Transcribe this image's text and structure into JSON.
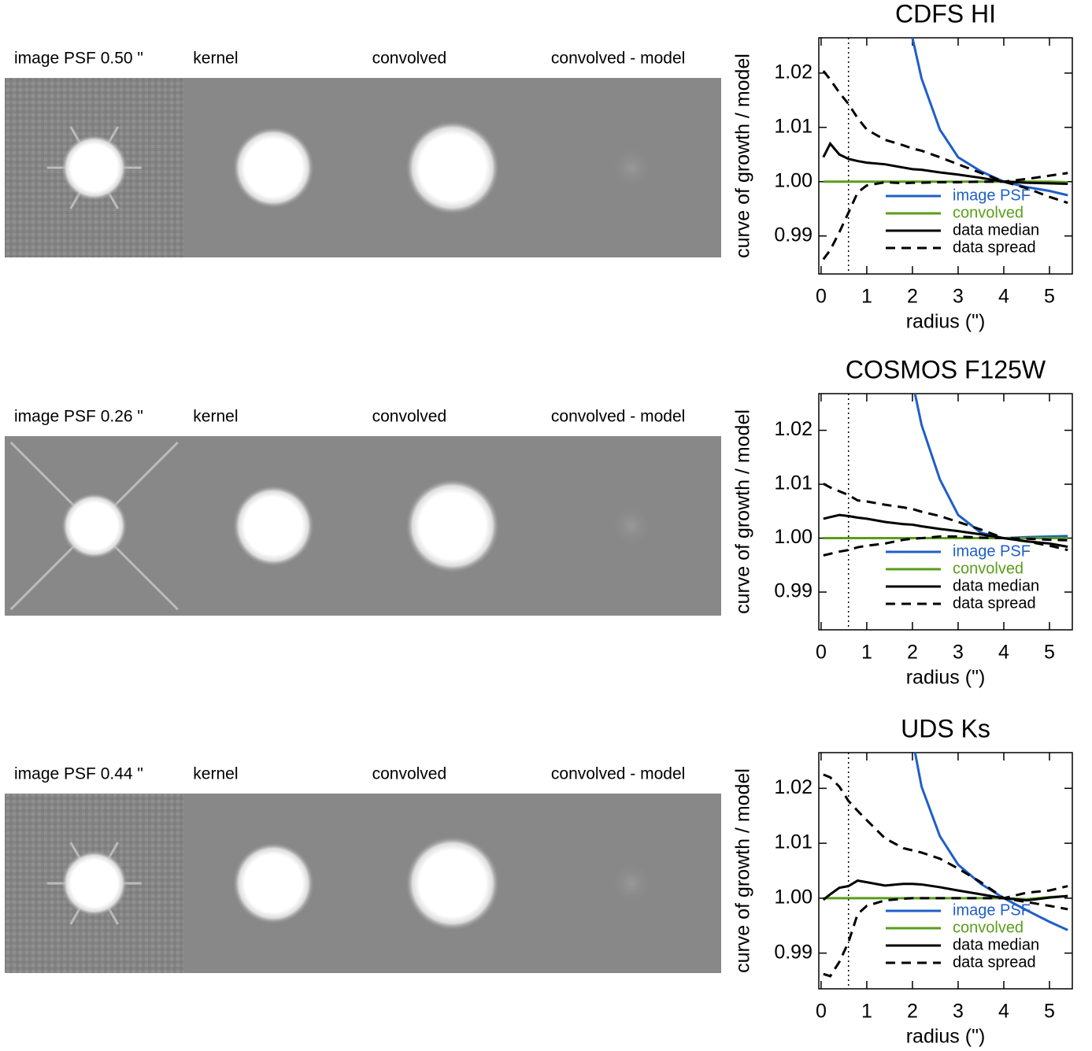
{
  "image_rows": [
    {
      "labels": [
        "image PSF 0.50 \"",
        "kernel",
        "convolved",
        "convolved - model"
      ]
    },
    {
      "labels": [
        "image PSF 0.26 \"",
        "kernel",
        "convolved",
        "convolved - model"
      ]
    },
    {
      "labels": [
        "image PSF 0.44 \"",
        "kernel",
        "convolved",
        "convolved - model"
      ]
    }
  ],
  "chart_data": [
    {
      "type": "line",
      "title": "CDFS HI",
      "x_label": "radius (\")",
      "y_label": "curve of growth / model",
      "xlim": [
        -0.05,
        5.5
      ],
      "ylim": [
        0.983,
        1.0265
      ],
      "xticks": [
        0,
        1,
        2,
        3,
        4,
        5
      ],
      "yticks": [
        0.99,
        {
          "value": 1.0,
          "label": "1.00"
        },
        1.01,
        1.02
      ],
      "vline_x": 0.6,
      "legend": "lower right",
      "x": [
        0.05,
        0.2,
        0.4,
        0.6,
        0.8,
        1.0,
        1.4,
        1.8,
        2.0,
        2.2,
        2.6,
        3.0,
        3.5,
        4.0,
        4.5,
        5.0,
        5.4
      ],
      "series": [
        {
          "name": "image PSF",
          "color": "#1f5fc8",
          "linestyle": "solid",
          "values": [
            null,
            null,
            null,
            null,
            null,
            null,
            null,
            null,
            1.0265,
            1.019,
            1.0096,
            1.0045,
            1.0019,
            1.0,
            0.999,
            0.9983,
            0.9975
          ]
        },
        {
          "name": "convolved",
          "color": "#5a9e1a",
          "linestyle": "solid",
          "values": [
            1.0,
            1.0,
            1.0,
            1.0,
            1.0,
            1.0,
            1.0,
            1.0,
            1.0,
            1.0,
            1.0,
            1.0,
            1.0,
            1.0,
            1.0,
            1.0,
            0.9999
          ]
        },
        {
          "name": "data median",
          "color": "#000000",
          "linestyle": "solid",
          "values": [
            1.0045,
            1.007,
            1.005,
            1.0042,
            1.0038,
            1.0035,
            1.0032,
            1.0026,
            1.0023,
            1.0022,
            1.0017,
            1.0013,
            1.0007,
            1.0,
            0.9998,
            0.9997,
            0.9996
          ]
        },
        {
          "name": "data spread",
          "color": "#000000",
          "linestyle": "dashed",
          "values": [
            1.0204,
            1.0188,
            1.0164,
            1.0143,
            1.0117,
            1.0096,
            1.0077,
            1.0067,
            1.0061,
            1.0057,
            1.0045,
            1.0032,
            1.0016,
            1.0,
            0.9988,
            0.9972,
            0.9961
          ]
        },
        {
          "color": "#000000",
          "linestyle": "dashed",
          "values": [
            0.9857,
            0.9874,
            0.9907,
            0.9943,
            0.998,
            0.9993,
            0.9999,
            0.9997,
            0.9998,
            0.9998,
            0.9999,
            0.9999,
            1.0,
            1.0,
            1.0005,
            1.0011,
            1.0016
          ]
        }
      ]
    },
    {
      "type": "line",
      "title": "COSMOS F125W",
      "x_label": "radius (\")",
      "y_label": "curve of growth / model",
      "xlim": [
        -0.05,
        5.5
      ],
      "ylim": [
        0.983,
        1.0268
      ],
      "xticks": [
        0,
        1,
        2,
        3,
        4,
        5
      ],
      "yticks": [
        0.99,
        {
          "value": 1.0,
          "label": "1.00"
        },
        1.01,
        1.02
      ],
      "vline_x": 0.6,
      "legend": "lower right",
      "x": [
        0.05,
        0.2,
        0.4,
        0.6,
        0.8,
        1.0,
        1.4,
        1.8,
        2.0,
        2.2,
        2.6,
        3.0,
        3.5,
        4.0,
        4.5,
        5.0,
        5.4
      ],
      "series": [
        {
          "name": "image PSF",
          "color": "#1f5fc8",
          "linestyle": "solid",
          "values": [
            null,
            null,
            null,
            null,
            null,
            null,
            null,
            null,
            1.029,
            1.021,
            1.0109,
            1.0043,
            1.001,
            1.0,
            1.0002,
            1.0003,
            1.0004
          ]
        },
        {
          "name": "convolved",
          "color": "#5a9e1a",
          "linestyle": "solid",
          "values": [
            1.0,
            1.0,
            1.0,
            1.0,
            1.0,
            1.0,
            1.0,
            1.0,
            1.0,
            1.0,
            1.0,
            1.0,
            1.0,
            1.0,
            1.0,
            1.0,
            1.0
          ]
        },
        {
          "name": "data median",
          "color": "#000000",
          "linestyle": "solid",
          "values": [
            1.0036,
            1.0039,
            1.0043,
            1.0041,
            1.0038,
            1.0036,
            1.003,
            1.0026,
            1.0025,
            1.0022,
            1.0017,
            1.0013,
            1.0007,
            1.0,
            0.9994,
            0.999,
            0.9984
          ]
        },
        {
          "name": "data spread",
          "color": "#000000",
          "linestyle": "dashed",
          "values": [
            1.0101,
            1.0094,
            1.0087,
            1.008,
            1.007,
            1.0068,
            1.0062,
            1.0057,
            1.0054,
            1.0049,
            1.0041,
            1.003,
            1.0016,
            1.0,
            0.9994,
            0.9986,
            0.9978
          ]
        },
        {
          "color": "#000000",
          "linestyle": "dashed",
          "values": [
            0.9968,
            0.9971,
            0.9975,
            0.9978,
            0.9983,
            0.9986,
            0.999,
            0.9997,
            0.9999,
            1.0,
            1.0003,
            1.0003,
            1.0001,
            1.0,
            0.9999,
            0.9997,
            0.9996
          ]
        }
      ]
    },
    {
      "type": "line",
      "title": "UDS Ks",
      "x_label": "radius (\")",
      "y_label": "curve of growth / model",
      "xlim": [
        -0.05,
        5.5
      ],
      "ylim": [
        0.9835,
        1.0265
      ],
      "xticks": [
        0,
        1,
        2,
        3,
        4,
        5
      ],
      "yticks": [
        0.99,
        {
          "value": 1.0,
          "label": "1.00"
        },
        1.01,
        1.02
      ],
      "vline_x": 0.6,
      "legend": "lower right",
      "x": [
        0.05,
        0.2,
        0.4,
        0.6,
        0.8,
        1.0,
        1.4,
        1.8,
        2.0,
        2.2,
        2.6,
        3.0,
        3.5,
        4.0,
        4.5,
        5.0,
        5.4
      ],
      "series": [
        {
          "name": "image PSF",
          "color": "#1f5fc8",
          "linestyle": "solid",
          "values": [
            null,
            null,
            null,
            null,
            null,
            null,
            null,
            null,
            1.029,
            1.0203,
            1.0113,
            1.0061,
            1.0026,
            1.0,
            0.9978,
            0.9957,
            0.9942
          ]
        },
        {
          "name": "convolved",
          "color": "#5a9e1a",
          "linestyle": "solid",
          "values": [
            1.0,
            1.0,
            1.0,
            1.0,
            1.0,
            1.0,
            1.0,
            1.0,
            1.0,
            1.0,
            1.0,
            1.0,
            1.0,
            1.0,
            0.9998,
            1.0002,
            1.0004
          ]
        },
        {
          "name": "data median",
          "color": "#000000",
          "linestyle": "solid",
          "values": [
            0.9997,
            1.0007,
            1.0019,
            1.0022,
            1.0032,
            1.0029,
            1.0023,
            1.0026,
            1.0026,
            1.0025,
            1.002,
            1.0014,
            1.0007,
            1.0,
            0.9996,
            1.0001,
            1.0004
          ]
        },
        {
          "name": "data spread",
          "color": "#000000",
          "linestyle": "dashed",
          "values": [
            1.0225,
            1.022,
            1.0203,
            1.0177,
            1.0159,
            1.0142,
            1.0109,
            1.0091,
            1.0087,
            1.0083,
            1.0072,
            1.0054,
            1.0029,
            1.0,
            1.001,
            1.0014,
            1.0022
          ]
        },
        {
          "color": "#000000",
          "linestyle": "dashed",
          "values": [
            0.9862,
            0.9858,
            0.9884,
            0.992,
            0.9971,
            0.9986,
            0.9996,
            0.9999,
            1.0,
            1.0,
            1.0,
            1.0,
            1.0,
            1.0,
            0.9993,
            0.9986,
            0.998
          ]
        }
      ]
    }
  ]
}
